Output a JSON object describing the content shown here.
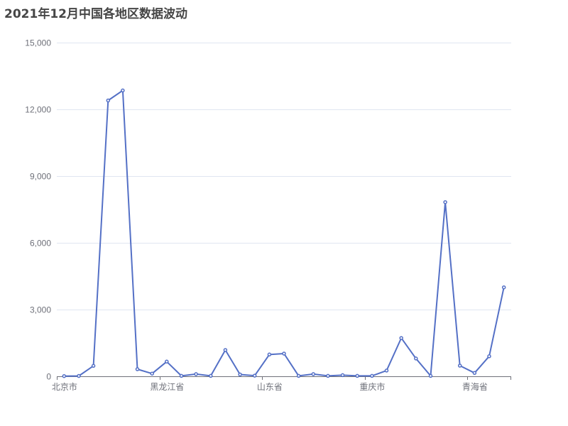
{
  "chart_data": {
    "type": "line",
    "title": "2021年12月中国各地区数据波动",
    "xlabel": "",
    "ylabel": "",
    "ylim": [
      0,
      15000
    ],
    "y_ticks": [
      0,
      3000,
      6000,
      9000,
      12000,
      15000
    ],
    "y_tick_labels": [
      "0",
      "3,000",
      "6,000",
      "9,000",
      "12,000",
      "15,000"
    ],
    "x_tick_labels": [
      {
        "index": 0,
        "label": "北京市"
      },
      {
        "index": 7,
        "label": "黑龙江省"
      },
      {
        "index": 14,
        "label": "山东省"
      },
      {
        "index": 21,
        "label": "重庆市"
      },
      {
        "index": 28,
        "label": "青海省"
      }
    ],
    "grid": true,
    "legend": "none",
    "colors": {
      "line": "#5470c6",
      "grid": "#e0e6f1",
      "axis": "#6e7079",
      "title": "#464646"
    },
    "series": [
      {
        "values": [
          10,
          15,
          470,
          12400,
          12850,
          320,
          120,
          660,
          20,
          100,
          20,
          1180,
          80,
          30,
          980,
          1020,
          20,
          100,
          20,
          50,
          20,
          20,
          260,
          1720,
          800,
          20,
          7830,
          480,
          150,
          900,
          4000
        ]
      }
    ]
  }
}
